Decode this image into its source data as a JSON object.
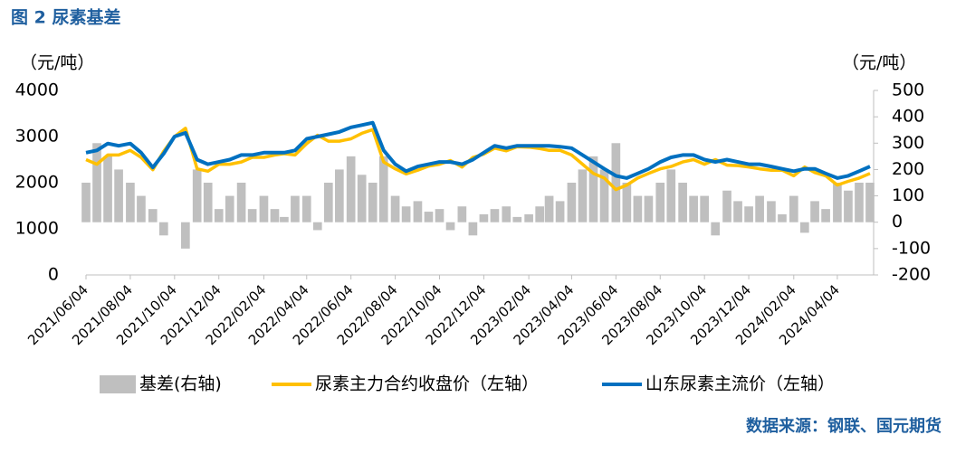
{
  "chart_data": {
    "type": "combo",
    "title": "图 2 尿素基差",
    "source": "数据来源：钢联、国元期货",
    "y_label": "（元/吨）",
    "y2_label": "（元/吨）",
    "x": [
      "2021/06/04",
      "2021/06/19",
      "2021/07/04",
      "2021/07/19",
      "2021/08/04",
      "2021/08/19",
      "2021/09/04",
      "2021/09/19",
      "2021/10/04",
      "2021/10/19",
      "2021/11/04",
      "2021/11/19",
      "2021/12/04",
      "2021/12/19",
      "2022/01/04",
      "2022/01/19",
      "2022/02/04",
      "2022/02/19",
      "2022/03/04",
      "2022/03/19",
      "2022/04/04",
      "2022/04/19",
      "2022/05/04",
      "2022/05/19",
      "2022/06/04",
      "2022/06/19",
      "2022/07/04",
      "2022/07/19",
      "2022/08/04",
      "2022/08/19",
      "2022/09/04",
      "2022/09/19",
      "2022/10/04",
      "2022/10/19",
      "2022/11/04",
      "2022/11/19",
      "2022/12/04",
      "2022/12/19",
      "2023/01/04",
      "2023/01/19",
      "2023/02/04",
      "2023/02/19",
      "2023/03/04",
      "2023/03/19",
      "2023/04/04",
      "2023/04/19",
      "2023/05/04",
      "2023/05/19",
      "2023/06/04",
      "2023/06/19",
      "2023/07/04",
      "2023/07/19",
      "2023/08/04",
      "2023/08/19",
      "2023/09/04",
      "2023/09/19",
      "2023/10/04",
      "2023/10/19",
      "2023/11/04",
      "2023/11/19",
      "2023/12/04",
      "2023/12/19",
      "2024/01/04",
      "2024/01/19",
      "2024/02/04",
      "2024/02/19",
      "2024/03/04",
      "2024/03/19",
      "2024/04/04",
      "2024/04/19",
      "2024/05/04",
      "2024/05/19"
    ],
    "xlim": [
      "2021/06/04",
      "2024/05/24"
    ],
    "xticks": [
      "2021/06/04",
      "2021/08/04",
      "2021/10/04",
      "2021/12/04",
      "2022/02/04",
      "2022/04/04",
      "2022/06/04",
      "2022/08/04",
      "2022/10/04",
      "2022/12/04",
      "2023/02/04",
      "2023/04/04",
      "2023/06/04",
      "2023/08/04",
      "2023/10/04",
      "2023/12/04",
      "2024/02/04",
      "2024/04/04"
    ],
    "ylim": [
      0,
      4000
    ],
    "yticks": [
      0,
      1000,
      2000,
      3000,
      4000
    ],
    "y2lim": [
      -200,
      500
    ],
    "y2ticks": [
      -200,
      -100,
      0,
      100,
      200,
      300,
      400,
      500
    ],
    "series": [
      {
        "name": "基差(右轴)",
        "type": "bar",
        "axis": "y2",
        "color": "#bfbfbf",
        "values": [
          150,
          300,
          250,
          200,
          150,
          100,
          50,
          -50,
          0,
          -100,
          200,
          150,
          50,
          100,
          150,
          50,
          100,
          50,
          20,
          100,
          100,
          -30,
          150,
          200,
          250,
          180,
          150,
          250,
          100,
          60,
          80,
          40,
          50,
          -30,
          60,
          -50,
          30,
          50,
          60,
          20,
          30,
          60,
          100,
          80,
          150,
          200,
          250,
          200,
          300,
          150,
          100,
          100,
          150,
          200,
          150,
          100,
          100,
          -50,
          120,
          80,
          60,
          100,
          80,
          30,
          100,
          -40,
          80,
          50,
          150,
          120,
          150,
          150
        ]
      },
      {
        "name": "尿素主力合约收盘价（左轴）",
        "type": "line",
        "color": "#ffc000",
        "values": [
          2500,
          2400,
          2600,
          2600,
          2700,
          2550,
          2280,
          2680,
          3000,
          3180,
          2300,
          2250,
          2400,
          2400,
          2450,
          2550,
          2550,
          2600,
          2630,
          2600,
          2850,
          3030,
          2900,
          2900,
          2950,
          3070,
          3150,
          2450,
          2300,
          2190,
          2270,
          2360,
          2400,
          2480,
          2340,
          2550,
          2620,
          2750,
          2690,
          2780,
          2770,
          2740,
          2700,
          2700,
          2600,
          2400,
          2200,
          2100,
          1850,
          1950,
          2100,
          2200,
          2300,
          2350,
          2450,
          2500,
          2400,
          2500,
          2380,
          2370,
          2340,
          2300,
          2270,
          2270,
          2150,
          2340,
          2220,
          2150,
          1950,
          2030,
          2100,
          2200
        ]
      },
      {
        "name": "山东尿素主流价（左轴）",
        "type": "line",
        "color": "#0070c0",
        "values": [
          2650,
          2700,
          2850,
          2800,
          2850,
          2650,
          2330,
          2630,
          3000,
          3080,
          2500,
          2400,
          2450,
          2500,
          2600,
          2600,
          2650,
          2650,
          2650,
          2700,
          2950,
          3000,
          3050,
          3100,
          3200,
          3250,
          3300,
          2700,
          2400,
          2250,
          2350,
          2400,
          2450,
          2450,
          2400,
          2500,
          2650,
          2800,
          2750,
          2800,
          2800,
          2800,
          2800,
          2780,
          2750,
          2600,
          2450,
          2300,
          2150,
          2100,
          2200,
          2300,
          2450,
          2550,
          2600,
          2600,
          2500,
          2450,
          2500,
          2450,
          2400,
          2400,
          2350,
          2300,
          2250,
          2300,
          2300,
          2200,
          2100,
          2150,
          2250,
          2350
        ]
      }
    ]
  }
}
